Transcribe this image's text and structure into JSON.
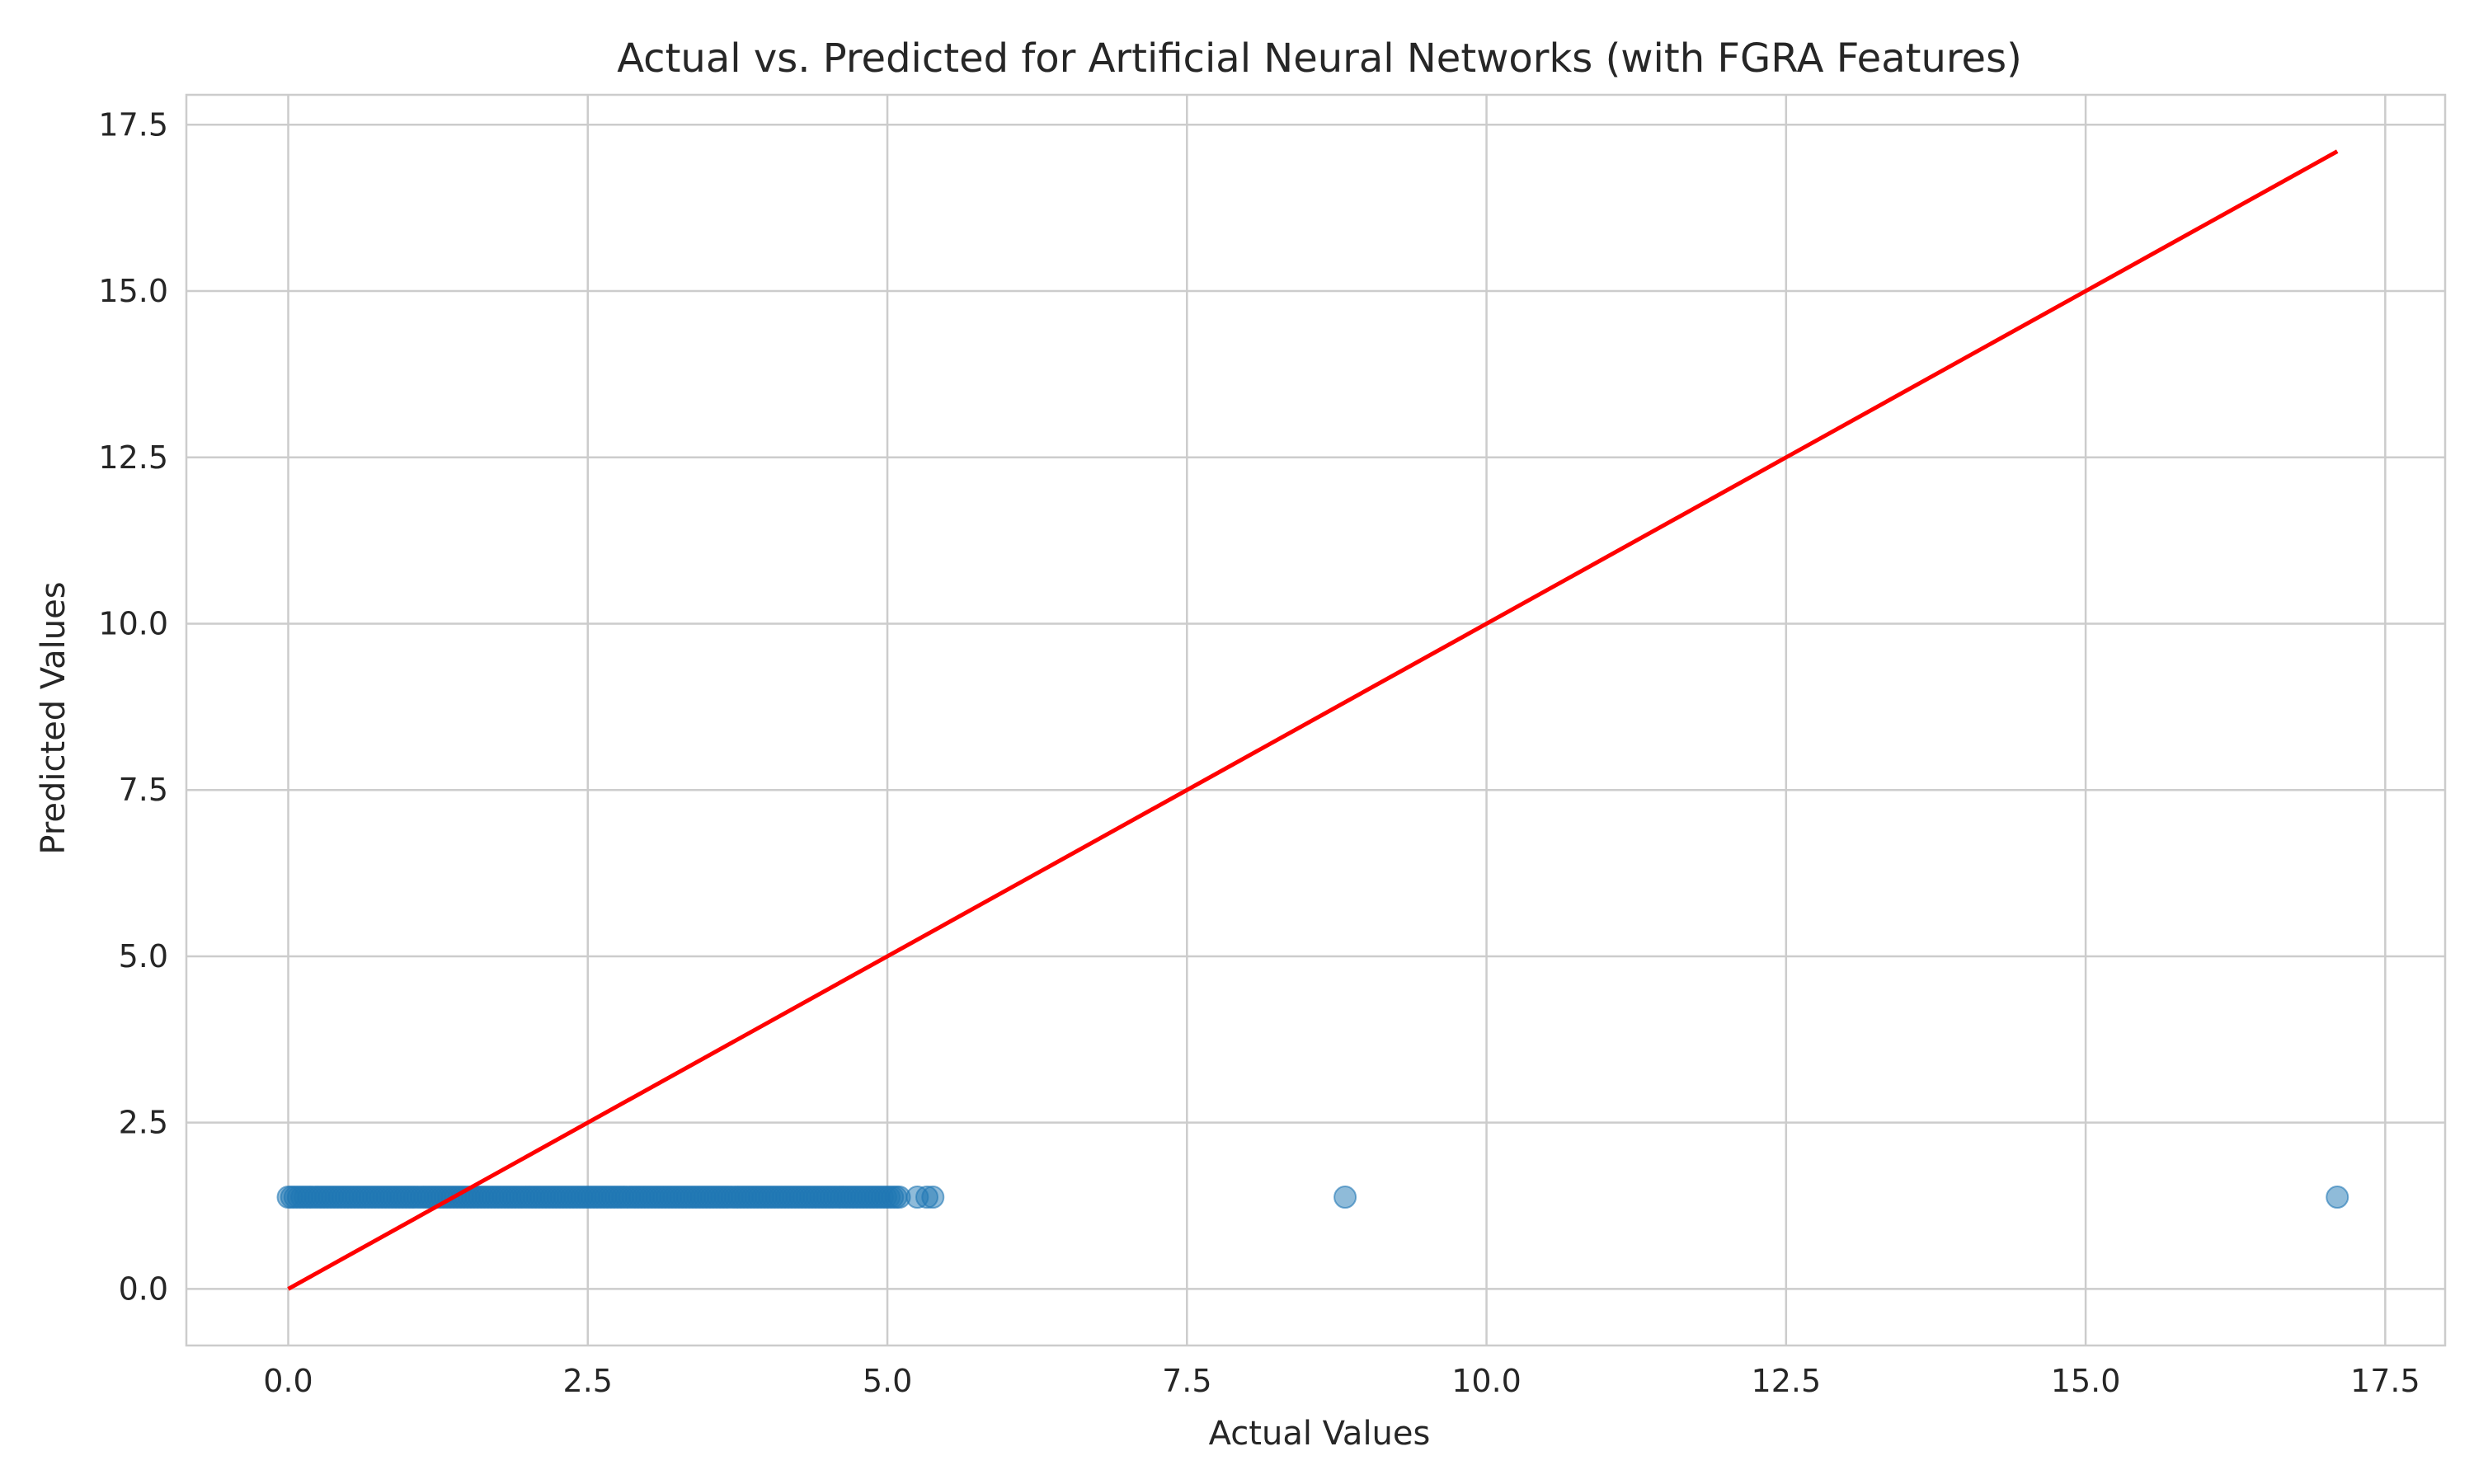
{
  "chart_data": {
    "type": "scatter",
    "title": "Actual vs. Predicted for Artificial Neural Networks (with FGRA Features)",
    "xlabel": "Actual Values",
    "ylabel": "Predicted Values",
    "xlim": [
      -0.85,
      18.0
    ],
    "ylim": [
      -0.85,
      17.95
    ],
    "xticks": [
      0.0,
      2.5,
      5.0,
      7.5,
      10.0,
      12.5,
      15.0,
      17.5
    ],
    "yticks": [
      0.0,
      2.5,
      5.0,
      7.5,
      10.0,
      12.5,
      15.0,
      17.5
    ],
    "xtick_labels": [
      "0.0",
      "2.5",
      "5.0",
      "7.5",
      "10.0",
      "12.5",
      "15.0",
      "17.5"
    ],
    "ytick_labels": [
      "0.0",
      "2.5",
      "5.0",
      "7.5",
      "10.0",
      "12.5",
      "15.0",
      "17.5"
    ],
    "grid": true,
    "scatter_color": "#1f77b4",
    "scatter_alpha": 0.5,
    "constant_prediction": 1.38,
    "dense_band": {
      "x_min": 0.0,
      "x_max": 5.1,
      "count": 180
    },
    "sparse_points": [
      {
        "x": 5.25,
        "y": 1.38
      },
      {
        "x": 5.33,
        "y": 1.38
      },
      {
        "x": 5.38,
        "y": 1.38
      },
      {
        "x": 8.82,
        "y": 1.38
      },
      {
        "x": 17.1,
        "y": 1.38
      }
    ],
    "reference_line": {
      "name": "y = x",
      "color": "#ff0000",
      "x": [
        0.0,
        17.1
      ],
      "y": [
        0.0,
        17.1
      ]
    }
  }
}
